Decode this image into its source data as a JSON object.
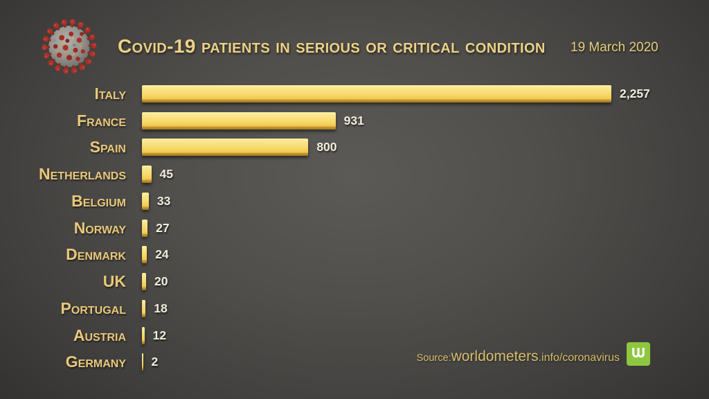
{
  "header": {
    "title": "Covid-19 patients in serious or critical condition",
    "date": "19 March 2020",
    "virus_icon": "coronavirus-icon"
  },
  "chart_data": {
    "type": "bar",
    "orientation": "horizontal",
    "title": "Covid-19 patients in serious or critical condition",
    "categories": [
      "Italy",
      "France",
      "Spain",
      "Netherlands",
      "Belgium",
      "Norway",
      "Denmark",
      "UK",
      "Portugal",
      "Austria",
      "Germany"
    ],
    "values": [
      2257,
      931,
      800,
      45,
      33,
      27,
      24,
      20,
      18,
      12,
      2
    ],
    "value_labels": [
      "2,257",
      "931",
      "800",
      "45",
      "33",
      "27",
      "24",
      "20",
      "18",
      "12",
      "2"
    ],
    "xlim": [
      0,
      2257
    ],
    "grid": false,
    "legend": "none",
    "bar_color": "#F6D463",
    "bar_color_dark_edge": "#B0852A",
    "label_color": "#EAC87A",
    "value_color": "#F1ECDC"
  },
  "footer": {
    "source_prefix": "Source: ",
    "source_domain": "worldometers",
    "source_path": ".info/coronavirus",
    "logo": "worldometers-logo",
    "logo_color": "#8DC63F"
  },
  "colors": {
    "background_center": "#5B5A57",
    "background_edge": "#252423",
    "gold_text": "#EDD185"
  }
}
